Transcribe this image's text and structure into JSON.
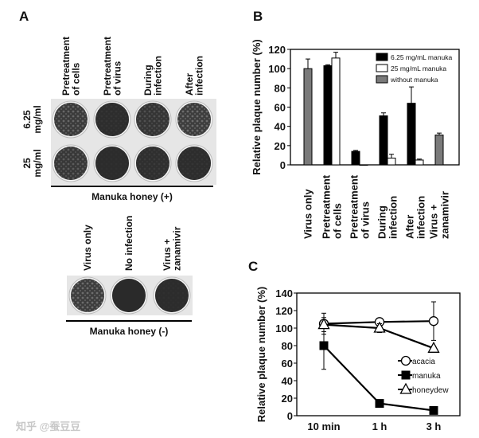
{
  "panel_a": {
    "label": "A",
    "top_columns": [
      "Pretreatment|of cells",
      "Pretreatment|of virus",
      "During|infection",
      "After|infection"
    ],
    "rows": [
      "6.25|mg/ml",
      "25|mg/ml"
    ],
    "group_top": "Manuka honey (+)",
    "bottom_columns": [
      "Virus only",
      "No infection",
      "Virus +|zanamivir"
    ],
    "group_bottom": "Manuka honey (-)"
  },
  "chart_data": [
    {
      "panel": "B",
      "type": "bar",
      "ylabel": "Relative plaque number (%)",
      "ylim": [
        0,
        120
      ],
      "yticks": [
        0,
        20,
        40,
        60,
        80,
        100,
        120
      ],
      "categories": [
        "Virus only",
        "Pretreatment|of cells",
        "Pretreatment|of virus",
        "During|infection",
        "After|infection",
        "Virus +|zanamivir"
      ],
      "series": [
        {
          "name": "6.25 mg/mL manuka",
          "color": "#000000",
          "values": [
            null,
            103,
            14,
            51,
            64,
            null
          ],
          "errors": [
            null,
            1,
            1,
            3,
            17,
            null
          ]
        },
        {
          "name": "25    mg/mL manuka",
          "color": "#ffffff",
          "values": [
            null,
            111,
            0,
            7,
            5,
            null
          ],
          "errors": [
            null,
            6,
            0,
            4,
            1,
            null
          ]
        },
        {
          "name": "without manuka",
          "color": "#7a7a7a",
          "values": [
            100,
            null,
            null,
            null,
            null,
            31
          ],
          "errors": [
            10,
            null,
            null,
            null,
            null,
            2
          ]
        }
      ],
      "legend": "top-right"
    },
    {
      "panel": "C",
      "type": "line",
      "ylabel": "Relative plaque number (%)",
      "ylim": [
        0,
        140
      ],
      "yticks": [
        0,
        20,
        40,
        60,
        80,
        100,
        120,
        140
      ],
      "x": [
        "10 min",
        "1 h",
        "3 h"
      ],
      "series": [
        {
          "name": "acacia",
          "marker": "circle-open",
          "values": [
            105,
            107,
            108
          ],
          "errors": [
            12,
            2,
            22
          ]
        },
        {
          "name": "manuka",
          "marker": "square-filled",
          "values": [
            80,
            14,
            6
          ],
          "errors": [
            27,
            1,
            1
          ]
        },
        {
          "name": "honeydew",
          "marker": "triangle-open",
          "values": [
            104,
            100,
            77
          ],
          "errors": [
            8,
            5,
            2
          ]
        }
      ],
      "legend": "center-right"
    }
  ],
  "watermark": "知乎 @蚕豆豆"
}
